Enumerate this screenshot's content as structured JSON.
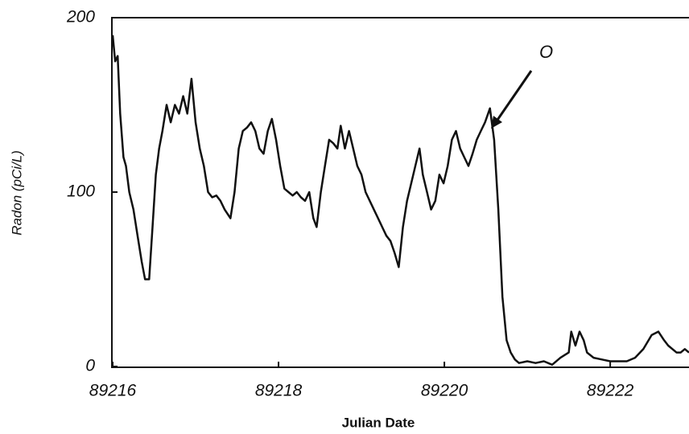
{
  "chart_data": {
    "type": "line",
    "x_label": "Julian Date",
    "y_label": "Radon (pCi/L)",
    "annotations": [
      {
        "text": "O"
      }
    ],
    "x": [
      89216.0,
      89216.03,
      89216.06,
      89216.09,
      89216.13,
      89216.16,
      89216.2,
      89216.25,
      89216.3,
      89216.35,
      89216.39,
      89216.44,
      89216.48,
      89216.52,
      89216.56,
      89216.6,
      89216.65,
      89216.7,
      89216.75,
      89216.8,
      89216.85,
      89216.9,
      89216.95,
      89217.0,
      89217.05,
      89217.1,
      89217.15,
      89217.2,
      89217.25,
      89217.3,
      89217.35,
      89217.42,
      89217.47,
      89217.52,
      89217.57,
      89217.62,
      89217.67,
      89217.72,
      89217.77,
      89217.82,
      89217.87,
      89217.92,
      89217.97,
      89218.02,
      89218.07,
      89218.12,
      89218.17,
      89218.22,
      89218.27,
      89218.32,
      89218.37,
      89218.42,
      89218.46,
      89218.51,
      89218.56,
      89218.61,
      89218.66,
      89218.71,
      89218.75,
      89218.8,
      89218.85,
      89218.9,
      89218.95,
      89219.0,
      89219.05,
      89219.1,
      89219.15,
      89219.2,
      89219.25,
      89219.3,
      89219.35,
      89219.4,
      89219.45,
      89219.5,
      89219.55,
      89219.6,
      89219.65,
      89219.7,
      89219.74,
      89219.79,
      89219.84,
      89219.89,
      89219.94,
      89219.99,
      89220.04,
      89220.09,
      89220.14,
      89220.19,
      89220.24,
      89220.29,
      89220.34,
      89220.39,
      89220.44,
      89220.49,
      89220.55,
      89220.6,
      89220.65,
      89220.7,
      89220.75,
      89220.8,
      89220.85,
      89220.9,
      89221.0,
      89221.1,
      89221.2,
      89221.3,
      89221.4,
      89221.5,
      89221.53,
      89221.58,
      89221.63,
      89221.68,
      89221.72,
      89221.8,
      89221.9,
      89222.0,
      89222.1,
      89222.2,
      89222.3,
      89222.4,
      89222.5,
      89222.58,
      89222.65,
      89222.7,
      89222.8,
      89222.85,
      89222.9,
      89222.95
    ],
    "series": [
      {
        "color": "#111111",
        "values": [
          190,
          175,
          178,
          145,
          120,
          115,
          100,
          90,
          75,
          60,
          50,
          50,
          80,
          110,
          125,
          135,
          150,
          140,
          150,
          145,
          155,
          145,
          165,
          140,
          125,
          115,
          100,
          97,
          98,
          95,
          90,
          85,
          100,
          125,
          135,
          137,
          140,
          135,
          125,
          122,
          135,
          142,
          130,
          115,
          102,
          100,
          98,
          100,
          97,
          95,
          100,
          85,
          80,
          100,
          115,
          130,
          128,
          125,
          138,
          125,
          135,
          125,
          115,
          110,
          100,
          95,
          90,
          85,
          80,
          75,
          72,
          65,
          57,
          80,
          95,
          105,
          115,
          125,
          110,
          100,
          90,
          95,
          110,
          105,
          115,
          130,
          135,
          125,
          120,
          115,
          122,
          130,
          135,
          140,
          148,
          130,
          90,
          40,
          15,
          8,
          4,
          2,
          3,
          2,
          3,
          1,
          5,
          8,
          20,
          12,
          20,
          15,
          8,
          5,
          4,
          3,
          3,
          3,
          5,
          10,
          18,
          20,
          15,
          12,
          8,
          8,
          10,
          8
        ]
      }
    ],
    "xlim": [
      89216,
      89222.95
    ],
    "xticks": [
      89216,
      89218,
      89220,
      89222
    ],
    "ylim": [
      0,
      200
    ],
    "yticks": [
      0,
      100,
      200
    ]
  }
}
